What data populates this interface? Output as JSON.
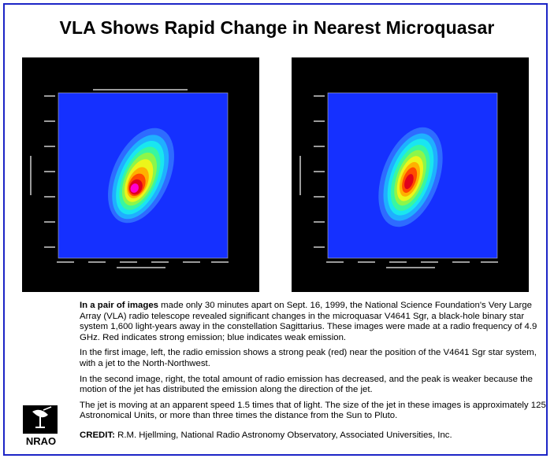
{
  "title": "VLA Shows Rapid Change in Nearest Microquasar",
  "paragraphs": [
    {
      "lead": "In a pair of images",
      "text": " made only 30 minutes apart on Sept. 16, 1999, the National Science Foundation's Very Large Array (VLA) radio telescope revealed significant changes in the microquasar V4641 Sgr, a black-hole binary star system 1,600 light-years away in the constellation Sagittarius. These images were made at a radio frequency of 4.9 GHz. Red indicates strong emission; blue indicates weak emission."
    },
    {
      "lead": "",
      "text": "In the first image, left, the radio emission shows a strong peak (red) near the position of the V4641 Sgr star system, with a jet to the North-Northwest."
    },
    {
      "lead": "",
      "text": "In the second image, right, the total amount of radio emission has decreased, and the peak is weaker because the motion of the jet has distributed the emission along the direction of the jet."
    },
    {
      "lead": "",
      "text": "The jet is moving at an apparent speed 1.5 times that of light. The size of the jet in these images is approximately 125 Astronomical Units, or more than three times the distance from the Sun to Pluto."
    }
  ],
  "credit": {
    "label": "CREDIT:",
    "text": " R.M. Hjellming, National Radio Astronomy Observatory, Associated Universities, Inc."
  },
  "logo": {
    "text": "NRAO"
  },
  "colors": {
    "frame": "#1c25c6",
    "map_background": "#1530ff",
    "strong_emission": "#e0001c",
    "weak_emission": "#1530ff"
  }
}
